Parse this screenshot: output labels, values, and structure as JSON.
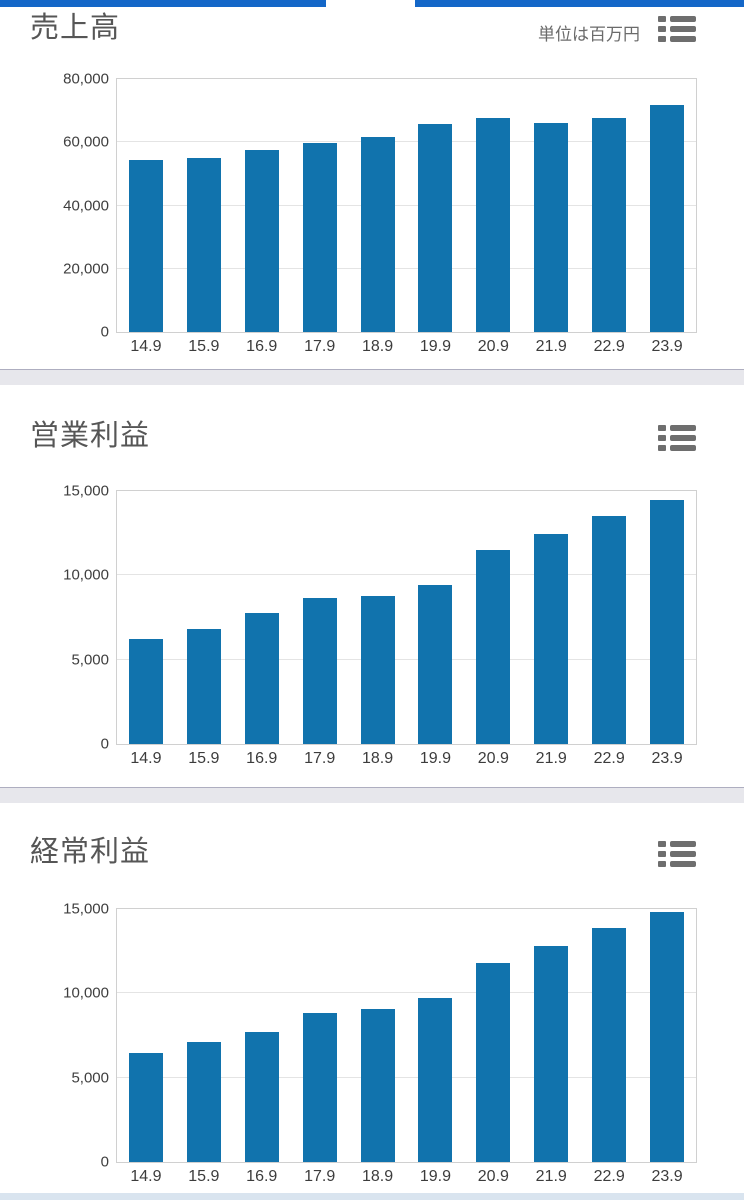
{
  "header": {
    "unit_label": "単位は百万円",
    "legend_icon": "list-icon"
  },
  "colors": {
    "bar": "#1173ad",
    "top_tab_bar": "#1467c8",
    "bottom_strip": "#d9e4ef",
    "divider": "#e7e7ec",
    "title_text": "#565656",
    "tick_text": "#3c3c3c",
    "icon_gray": "#6e6e6e"
  },
  "chart_data": [
    {
      "type": "bar",
      "title": "売上高",
      "unit": "単位は百万円",
      "categories": [
        "14.9",
        "15.9",
        "16.9",
        "17.9",
        "18.9",
        "19.9",
        "20.9",
        "21.9",
        "22.9",
        "23.9"
      ],
      "values": [
        54400,
        55000,
        57700,
        59800,
        61600,
        65900,
        67700,
        66100,
        67700,
        71700
      ],
      "xlabel": "",
      "ylabel": "",
      "ylim": [
        0,
        80000
      ],
      "ytick_step": 20000,
      "grid": true,
      "legend_position": "none"
    },
    {
      "type": "bar",
      "title": "営業利益",
      "categories": [
        "14.9",
        "15.9",
        "16.9",
        "17.9",
        "18.9",
        "19.9",
        "20.9",
        "21.9",
        "22.9",
        "23.9"
      ],
      "values": [
        6250,
        6800,
        7750,
        8650,
        8800,
        9450,
        11500,
        12450,
        13500,
        14450
      ],
      "xlabel": "",
      "ylabel": "",
      "ylim": [
        0,
        15000
      ],
      "ytick_step": 5000,
      "grid": true,
      "legend_position": "none"
    },
    {
      "type": "bar",
      "title": "経常利益",
      "categories": [
        "14.9",
        "15.9",
        "16.9",
        "17.9",
        "18.9",
        "19.9",
        "20.9",
        "21.9",
        "22.9",
        "23.9"
      ],
      "values": [
        6450,
        7100,
        7700,
        8850,
        9050,
        9750,
        11800,
        12800,
        13850,
        14850
      ],
      "xlabel": "",
      "ylabel": "",
      "ylim": [
        0,
        15000
      ],
      "ytick_step": 5000,
      "grid": true,
      "legend_position": "none"
    }
  ]
}
